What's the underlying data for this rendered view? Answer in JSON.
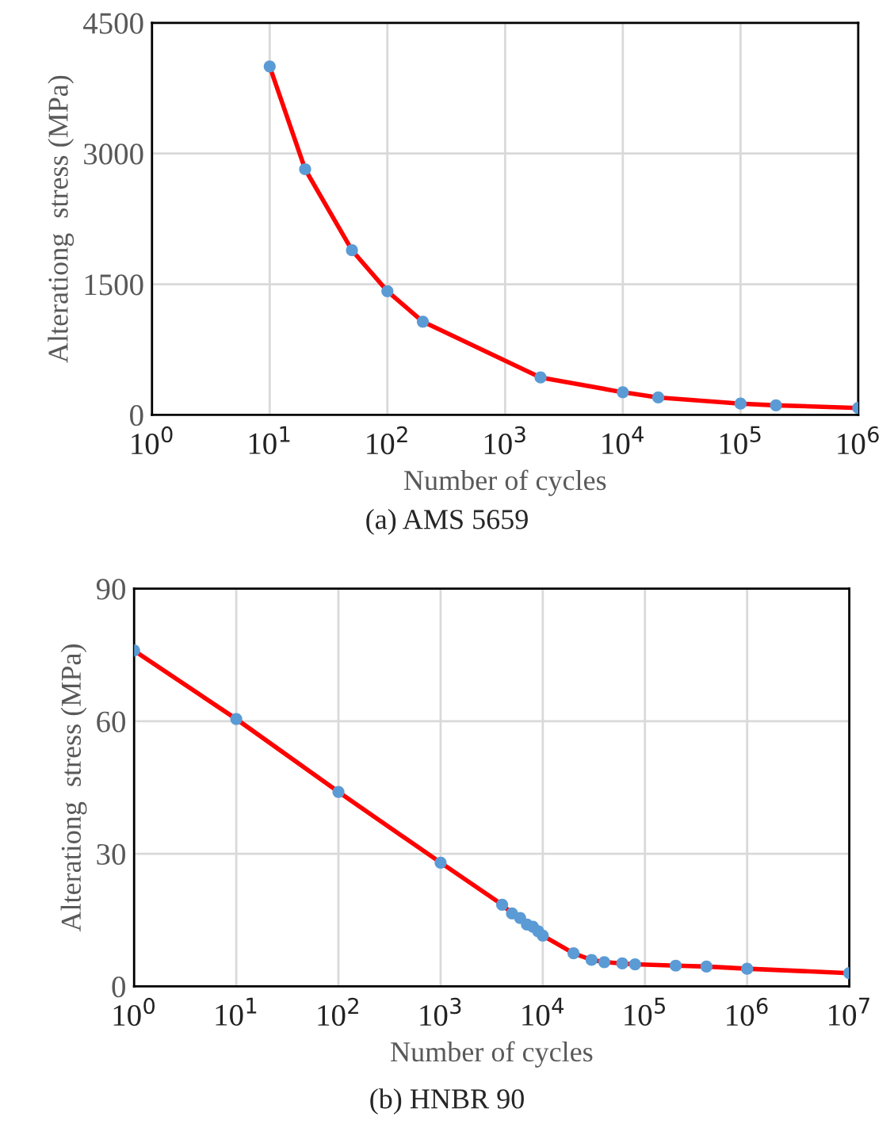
{
  "chart_data": [
    {
      "type": "line",
      "xlabel": "Number of cycles",
      "ylabel": "Alterationg  stress (MPa)",
      "annotations": [
        "(a) AMS 5659"
      ],
      "log": "x",
      "grid": true,
      "marker": "circle",
      "line_style": "solid",
      "x": [
        10,
        20,
        50,
        100,
        200,
        2000,
        10000,
        20000,
        100000,
        200000,
        1000000
      ],
      "series": [
        {
          "color": "#ff0000",
          "colors": [
            "#5b9bd5",
            "#5b9bd5",
            "#5b9bd5",
            "#5b9bd5",
            "#5b9bd5",
            "#5b9bd5",
            "#5b9bd5",
            "#5b9bd5",
            "#5b9bd5",
            "#5b9bd5",
            "#5b9bd5"
          ],
          "values": [
            4000,
            2820,
            1890,
            1420,
            1070,
            430,
            260,
            200,
            130,
            110,
            80
          ]
        }
      ],
      "xlim": [
        1,
        1000000
      ],
      "xticks": [
        {
          "value": 1,
          "label": "10$^{0}$"
        },
        {
          "value": 10,
          "label": "10$^{1}$"
        },
        {
          "value": 100,
          "label": "10$^{2}$"
        },
        {
          "value": 1000,
          "label": "10$^{3}$"
        },
        {
          "value": 10000,
          "label": "10$^{4}$"
        },
        {
          "value": 100000,
          "label": "10$^{5}$"
        },
        {
          "value": 1000000,
          "label": "10$^{6}$"
        }
      ],
      "ylim": [
        0,
        4500
      ],
      "yticks": [
        0,
        1500,
        3000,
        4500
      ]
    },
    {
      "type": "line",
      "xlabel": "Number of cycles",
      "ylabel": "Alterationg  stress (MPa)",
      "annotations": [
        "(b) HNBR 90"
      ],
      "log": "x",
      "grid": true,
      "marker": "circle",
      "line_style": "solid",
      "x": [
        1,
        10,
        100,
        1000,
        4000,
        5000,
        6000,
        7000,
        8000,
        9000,
        10000,
        20000,
        30000,
        40000,
        60000,
        80000,
        200000,
        400000,
        1000000,
        10000000
      ],
      "series": [
        {
          "color": "#ff0000",
          "colors": [
            "#5b9bd5",
            "#5b9bd5",
            "#5b9bd5",
            "#5b9bd5",
            "#5b9bd5",
            "#5b9bd5",
            "#5b9bd5",
            "#5b9bd5",
            "#5b9bd5",
            "#5b9bd5",
            "#5b9bd5",
            "#5b9bd5",
            "#5b9bd5",
            "#5b9bd5",
            "#5b9bd5",
            "#5b9bd5",
            "#5b9bd5",
            "#5b9bd5",
            "#5b9bd5",
            "#5b9bd5"
          ],
          "values": [
            76,
            60.5,
            44,
            28,
            18.5,
            16.5,
            15.5,
            14,
            13.5,
            12.5,
            11.5,
            7.5,
            6,
            5.5,
            5.2,
            5,
            4.7,
            4.5,
            4,
            3
          ]
        }
      ],
      "xlim": [
        1,
        10000000
      ],
      "xticks": [
        {
          "value": 1,
          "label": "10$^{0}$"
        },
        {
          "value": 10,
          "label": "10$^{1}$"
        },
        {
          "value": 100,
          "label": "10$^{2}$"
        },
        {
          "value": 1000,
          "label": "10$^{3}$"
        },
        {
          "value": 10000,
          "label": "10$^{4}$"
        },
        {
          "value": 100000,
          "label": "10$^{5}$"
        },
        {
          "value": 1000000,
          "label": "10$^{6}$"
        },
        {
          "value": 10000000,
          "label": "10$^{7}$"
        }
      ],
      "ylim": [
        0,
        90
      ],
      "yticks": [
        0,
        30,
        60,
        90
      ]
    }
  ]
}
